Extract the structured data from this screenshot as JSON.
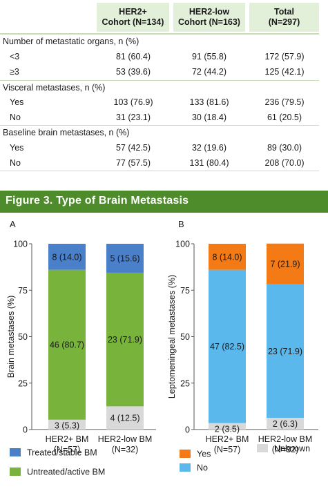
{
  "table": {
    "headers": [
      {
        "line1": "HER2+",
        "line2": "Cohort (N=134)"
      },
      {
        "line1": "HER2-low",
        "line2": "Cohort (N=163)"
      },
      {
        "line1": "Total",
        "line2": "(N=297)"
      }
    ],
    "sections": [
      {
        "title": "Number of metastatic organs, n (%)",
        "rows": [
          {
            "label": "<3",
            "values": [
              "81 (60.4)",
              "91 (55.8)",
              "172 (57.9)"
            ]
          },
          {
            "label": "≥3",
            "values": [
              "53 (39.6)",
              "72 (44.2)",
              "125 (42.1)"
            ]
          }
        ]
      },
      {
        "title": "Visceral metastases, n (%)",
        "rows": [
          {
            "label": "Yes",
            "values": [
              "103 (76.9)",
              "133 (81.6)",
              "236 (79.5)"
            ]
          },
          {
            "label": "No",
            "values": [
              "31 (23.1)",
              "30 (18.4)",
              "61 (20.5)"
            ]
          }
        ]
      },
      {
        "title": "Baseline brain metastases, n (%)",
        "rows": [
          {
            "label": "Yes",
            "values": [
              "57 (42.5)",
              "32 (19.6)",
              "89 (30.0)"
            ]
          },
          {
            "label": "No",
            "values": [
              "77 (57.5)",
              "131 (80.4)",
              "208 (70.0)"
            ]
          }
        ]
      }
    ]
  },
  "figure": {
    "title": "Figure 3. Type of Brain Metastasis"
  },
  "colors": {
    "banner": "#4e8b2b",
    "header_bg": "#e2f0d9",
    "treated": "#4a7fc9",
    "untreated": "#78b43c",
    "unknown": "#d9d9d9",
    "yes": "#f47a16",
    "no": "#5bb8ec"
  },
  "chart_data": [
    {
      "type": "bar",
      "stacked": true,
      "panel": "A",
      "ylabel": "Brain metastases (%)",
      "ylim": [
        0,
        100
      ],
      "yticks": [
        "0",
        "25",
        "50",
        "75",
        "100"
      ],
      "categories": [
        {
          "line1": "HER2+ BM",
          "line2": "(N=57)"
        },
        {
          "line1": "HER2-low BM",
          "line2": "(N=32)"
        }
      ],
      "series": [
        {
          "name": "Unknown",
          "color": "#d9d9d9",
          "values": [
            5.3,
            12.5
          ],
          "labels": [
            "3 (5.3)",
            "4 (12.5)"
          ]
        },
        {
          "name": "Untreated/active BM",
          "color": "#78b43c",
          "values": [
            80.7,
            71.9
          ],
          "labels": [
            "46 (80.7)",
            "23 (71.9)"
          ]
        },
        {
          "name": "Treated/stable BM",
          "color": "#4a7fc9",
          "values": [
            14.0,
            15.6
          ],
          "labels": [
            "8 (14.0)",
            "5 (15.6)"
          ]
        }
      ],
      "legend": [
        "Treated/stable BM",
        "Untreated/active BM"
      ]
    },
    {
      "type": "bar",
      "stacked": true,
      "panel": "B",
      "ylabel": "Leptomeningeal metastases (%)",
      "ylim": [
        0,
        100
      ],
      "yticks": [
        "0",
        "25",
        "50",
        "75",
        "100"
      ],
      "categories": [
        {
          "line1": "HER2+ BM",
          "line2": "(N=57)"
        },
        {
          "line1": "HER2-low BM",
          "line2": "(N=32)"
        }
      ],
      "series": [
        {
          "name": "Unknown",
          "color": "#d9d9d9",
          "values": [
            3.5,
            6.3
          ],
          "labels": [
            "2 (3.5)",
            "2 (6.3)"
          ]
        },
        {
          "name": "No",
          "color": "#5bb8ec",
          "values": [
            82.5,
            71.9
          ],
          "labels": [
            "47 (82.5)",
            "23 (71.9)"
          ]
        },
        {
          "name": "Yes",
          "color": "#f47a16",
          "values": [
            14.0,
            21.9
          ],
          "labels": [
            "8 (14.0)",
            "7 (21.9)"
          ]
        }
      ],
      "legend": [
        "Yes",
        "Unknown",
        "No"
      ]
    }
  ]
}
